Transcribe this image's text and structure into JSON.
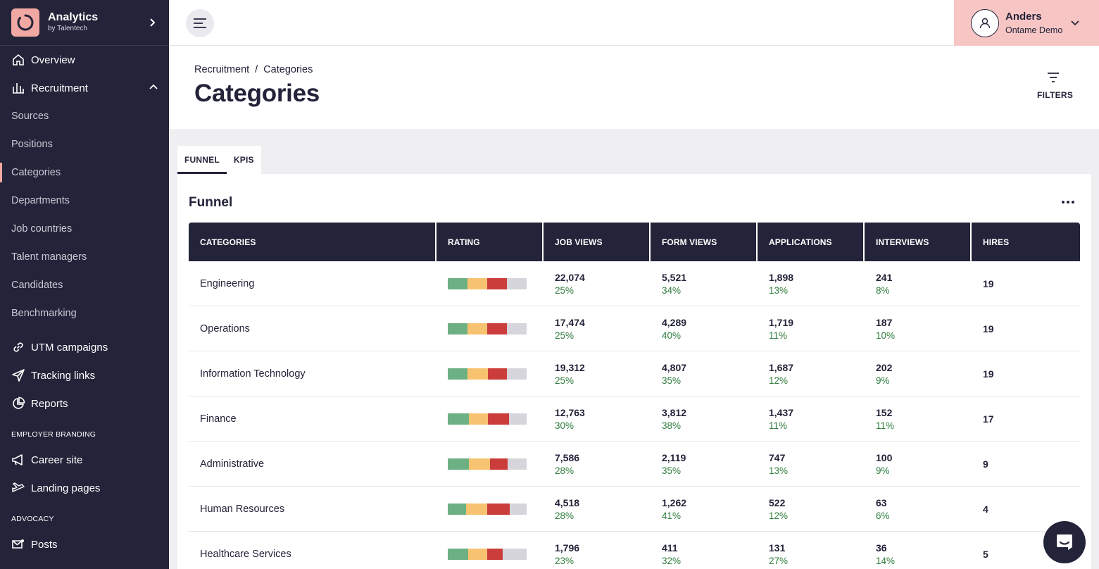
{
  "app": {
    "title": "Analytics",
    "subtitle": "by Talentech",
    "accent": "#f2a8a2",
    "dark": "#23233a"
  },
  "sidebar": {
    "items": [
      {
        "label": "Overview",
        "icon": "home-icon"
      },
      {
        "label": "Recruitment",
        "icon": "bar-chart-icon"
      },
      {
        "label": "Sources"
      },
      {
        "label": "Positions"
      },
      {
        "label": "Categories"
      },
      {
        "label": "Departments"
      },
      {
        "label": "Job countries"
      },
      {
        "label": "Talent managers"
      },
      {
        "label": "Candidates"
      },
      {
        "label": "Benchmarking"
      },
      {
        "label": "UTM campaigns",
        "icon": "link-icon"
      },
      {
        "label": "Tracking links",
        "icon": "send-icon"
      },
      {
        "label": "Reports",
        "icon": "pie-chart-icon"
      },
      {
        "label": "Career site",
        "icon": "megaphone-icon"
      },
      {
        "label": "Landing pages",
        "icon": "plane-icon"
      },
      {
        "label": "Posts",
        "icon": "mail-icon"
      }
    ],
    "sections": {
      "employer_branding": "EMPLOYER BRANDING",
      "advocacy": "ADVOCACY"
    }
  },
  "user": {
    "name": "Anders",
    "org": "Ontame Demo"
  },
  "header": {
    "breadcrumb_parent": "Recruitment",
    "breadcrumb_sep": "/",
    "breadcrumb_current": "Categories",
    "title": "Categories",
    "filters_label": "FILTERS"
  },
  "tabs": [
    {
      "label": "FUNNEL",
      "active": true
    },
    {
      "label": "KPIS",
      "active": false
    }
  ],
  "funnel": {
    "title": "Funnel",
    "columns": [
      "CATEGORIES",
      "RATING",
      "JOB VIEWS",
      "FORM VIEWS",
      "APPLICATIONS",
      "INTERVIEWS",
      "HIRES"
    ],
    "rows": [
      {
        "category": "Engineering",
        "rating": [
          25,
          25,
          25,
          25
        ],
        "job_views": "22,074",
        "job_views_pct": "25%",
        "form_views": "5,521",
        "form_views_pct": "34%",
        "applications": "1,898",
        "applications_pct": "13%",
        "interviews": "241",
        "interviews_pct": "8%",
        "hires": "19"
      },
      {
        "category": "Operations",
        "rating": [
          25,
          25,
          25,
          25
        ],
        "job_views": "17,474",
        "job_views_pct": "25%",
        "form_views": "4,289",
        "form_views_pct": "40%",
        "applications": "1,719",
        "applications_pct": "11%",
        "interviews": "187",
        "interviews_pct": "10%",
        "hires": "19"
      },
      {
        "category": "Information Technology",
        "rating": [
          25,
          26,
          24,
          25
        ],
        "job_views": "19,312",
        "job_views_pct": "25%",
        "form_views": "4,807",
        "form_views_pct": "35%",
        "applications": "1,687",
        "applications_pct": "12%",
        "interviews": "202",
        "interviews_pct": "9%",
        "hires": "19"
      },
      {
        "category": "Finance",
        "rating": [
          27,
          24,
          27,
          22
        ],
        "job_views": "12,763",
        "job_views_pct": "30%",
        "form_views": "3,812",
        "form_views_pct": "38%",
        "applications": "1,437",
        "applications_pct": "11%",
        "interviews": "152",
        "interviews_pct": "11%",
        "hires": "17"
      },
      {
        "category": "Administrative",
        "rating": [
          27,
          27,
          22,
          24
        ],
        "job_views": "7,586",
        "job_views_pct": "28%",
        "form_views": "2,119",
        "form_views_pct": "35%",
        "applications": "747",
        "applications_pct": "13%",
        "interviews": "100",
        "interviews_pct": "9%",
        "hires": "9"
      },
      {
        "category": "Human Resources",
        "rating": [
          23,
          27,
          29,
          21
        ],
        "job_views": "4,518",
        "job_views_pct": "28%",
        "form_views": "1,262",
        "form_views_pct": "41%",
        "applications": "522",
        "applications_pct": "12%",
        "interviews": "63",
        "interviews_pct": "6%",
        "hires": "4"
      },
      {
        "category": "Healthcare Services",
        "rating": [
          26,
          24,
          20,
          30
        ],
        "job_views": "1,796",
        "job_views_pct": "23%",
        "form_views": "411",
        "form_views_pct": "32%",
        "applications": "131",
        "applications_pct": "27%",
        "interviews": "36",
        "interviews_pct": "14%",
        "hires": "5"
      }
    ]
  }
}
